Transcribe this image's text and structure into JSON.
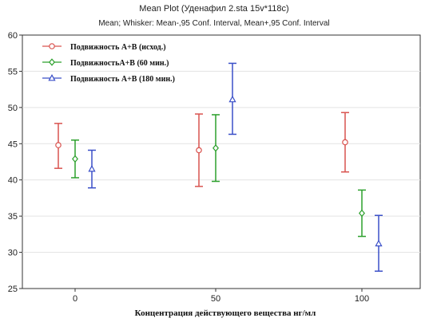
{
  "chart_data": {
    "type": "scatter",
    "title": "Mean Plot (Уденафил 2.sta 15v*118c)",
    "subtitle": "Mean;  Whisker: Mean-,95 Conf. Interval, Mean+,95 Conf. Interval",
    "xlabel": "Концентрация действующего вещества нг/мл",
    "ylabel": "",
    "categories": [
      "0",
      "50",
      "100"
    ],
    "ylim": [
      25,
      60
    ],
    "yticks": [
      25,
      30,
      35,
      40,
      45,
      50,
      55,
      60
    ],
    "grid": true,
    "legend_position": "top-left",
    "series": [
      {
        "name": "Подвижность А+В (исход.)",
        "color": "#d9534f",
        "marker": "circle",
        "mean": [
          44.8,
          44.1,
          45.2
        ],
        "lower": [
          41.6,
          39.1,
          41.1
        ],
        "upper": [
          47.8,
          49.1,
          49.3
        ]
      },
      {
        "name": "ПодвижностьА+В (60 мин.)",
        "color": "#2ca02c",
        "marker": "diamond",
        "mean": [
          42.9,
          44.4,
          35.4
        ],
        "lower": [
          40.3,
          39.8,
          32.2
        ],
        "upper": [
          45.5,
          49.0,
          38.6
        ]
      },
      {
        "name": "Подвижность А+В (180 мин.)",
        "color": "#3a4fc8",
        "marker": "triangle",
        "mean": [
          41.5,
          51.1,
          31.2
        ],
        "lower": [
          38.9,
          46.3,
          27.4
        ],
        "upper": [
          44.1,
          56.1,
          35.1
        ]
      }
    ]
  }
}
